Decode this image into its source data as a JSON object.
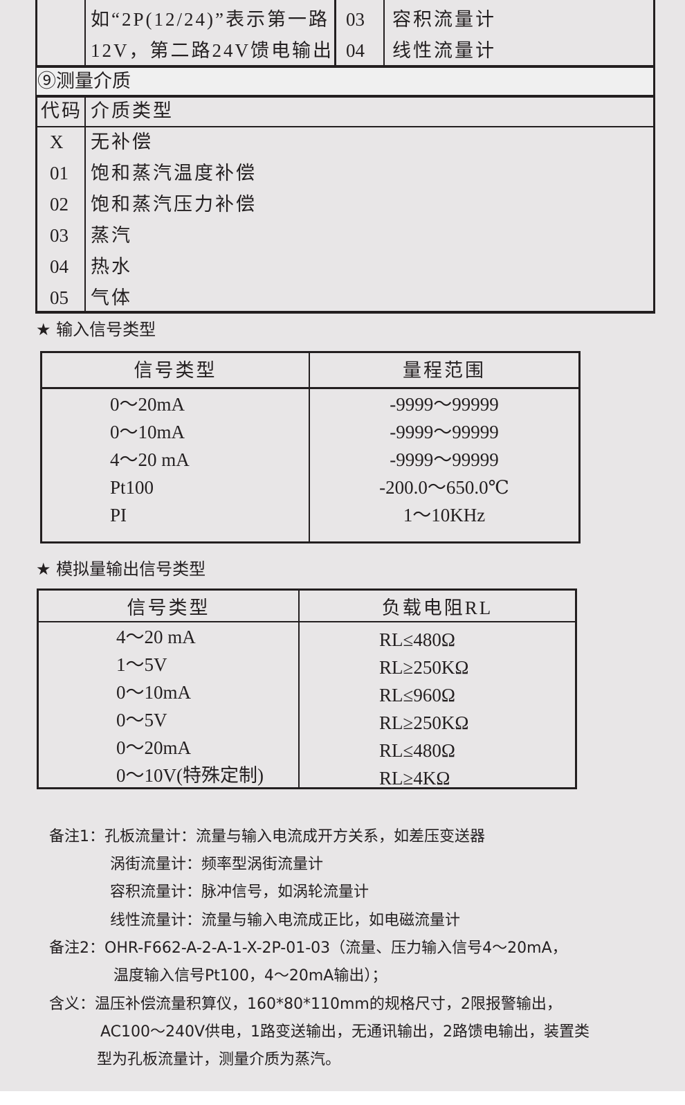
{
  "table1": {
    "feed_desc": [
      "如“2P(12/24)”表示第一路",
      "12V，第二路24V馈电输出"
    ],
    "device_rows": [
      {
        "code": "03",
        "label": "容积流量计"
      },
      {
        "code": "04",
        "label": "线性流量计"
      }
    ],
    "section_title": "⑨测量介质",
    "header": {
      "code": "代码",
      "type": "介质类型"
    },
    "rows": [
      {
        "code": "X",
        "type": "无补偿"
      },
      {
        "code": "01",
        "type": "饱和蒸汽温度补偿"
      },
      {
        "code": "02",
        "type": "饱和蒸汽压力补偿"
      },
      {
        "code": "03",
        "type": "蒸汽"
      },
      {
        "code": "04",
        "type": "热水"
      },
      {
        "code": "05",
        "type": "气体"
      }
    ]
  },
  "input": {
    "title": "★ 输入信号类型",
    "header": [
      "信号类型",
      "量程范围"
    ],
    "rows": [
      [
        "0～20mA",
        "-9999～99999"
      ],
      [
        "0～10mA",
        "-9999～99999"
      ],
      [
        "4～20 mA",
        "-9999～99999"
      ],
      [
        "Pt100",
        "-200.0～650.0℃"
      ],
      [
        "PI",
        "1～10KHz"
      ]
    ]
  },
  "output": {
    "title": "★ 模拟量输出信号类型",
    "header": [
      "信号类型",
      "负载电阻RL"
    ],
    "rows": [
      [
        "4～20 mA",
        "RL≤480Ω"
      ],
      [
        "1～5V",
        "RL≥250KΩ"
      ],
      [
        "0～10mA",
        "RL≤960Ω"
      ],
      [
        "0～5V",
        "RL≥250KΩ"
      ],
      [
        "0～20mA",
        "RL≤480Ω"
      ],
      [
        "0～10V(特殊定制)",
        "RL≥4KΩ"
      ]
    ]
  },
  "notes": [
    "备注1：孔板流量计：流量与输入电流成开方关系，如差压变送器",
    "涡街流量计：频率型涡街流量计",
    "容积流量计：脉冲信号，如涡轮流量计",
    "线性流量计：流量与输入电流成正比，如电磁流量计",
    "备注2：OHR-F662-A-2-A-1-X-2P-01-03（流量、压力输入信号4～20mA，",
    "温度输入信号Pt100，4～20mA输出）；",
    "含义：温压补偿流量积算仪，160*80*110mm的规格尺寸，2限报警输出，",
    "AC100～240V供电，1路变送输出，无通讯输出，2路馈电输出，装置类",
    "型为孔板流量计，测量介质为蒸汽。"
  ]
}
